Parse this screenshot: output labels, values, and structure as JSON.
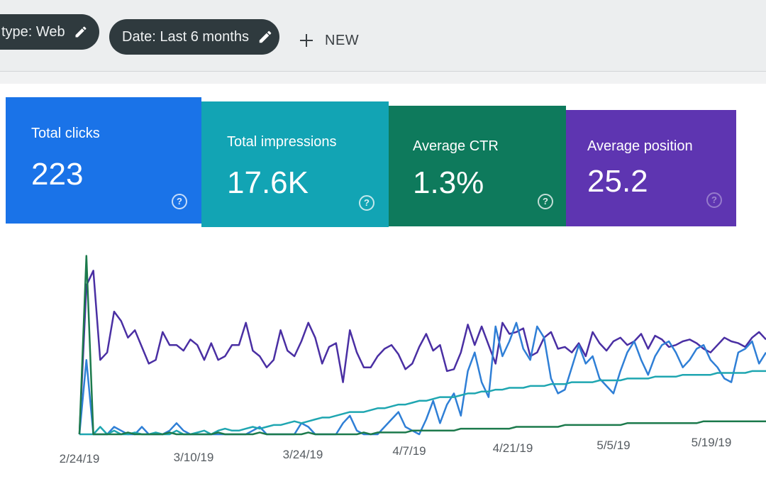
{
  "filters": {
    "type_chip": "type: Web",
    "date_chip": "Date: Last 6 months",
    "new_button": "NEW"
  },
  "metrics": [
    {
      "label": "Total clicks",
      "value": "223",
      "color": "#1a73e8"
    },
    {
      "label": "Total impressions",
      "value": "17.6K",
      "color": "#12a4b4"
    },
    {
      "label": "Average CTR",
      "value": "1.3%",
      "color": "#0e7a5c"
    },
    {
      "label": "Average position",
      "value": "25.2",
      "color": "#5e35b1"
    }
  ],
  "chart_data": {
    "type": "line",
    "x_ticks": [
      "2/24/19",
      "3/10/19",
      "3/24/19",
      "4/7/19",
      "4/21/19",
      "5/5/19",
      "5/19/19"
    ],
    "series": [
      {
        "color": "#4a2fa3",
        "values": [
          0,
          80,
          88,
          40,
          44,
          66,
          61,
          52,
          56,
          47,
          38,
          40,
          55,
          48,
          48,
          45,
          51,
          48,
          40,
          49,
          40,
          42,
          48,
          48,
          60,
          45,
          42,
          36,
          40,
          56,
          45,
          42,
          50,
          60,
          52,
          38,
          47,
          49,
          28,
          56,
          44,
          36,
          36,
          42,
          46,
          48,
          43,
          35,
          38,
          47,
          54,
          45,
          48,
          34,
          35,
          44,
          59,
          48,
          58,
          48,
          38,
          60,
          54,
          55,
          57,
          42,
          44,
          52,
          55,
          46,
          47,
          44,
          49,
          42,
          55,
          49,
          45,
          50,
          52,
          48,
          50,
          54,
          46,
          53,
          51,
          47,
          48,
          50,
          51,
          49,
          46,
          44,
          48,
          52,
          50,
          49,
          47,
          52,
          55,
          51
        ]
      },
      {
        "color": "#2f7fd6",
        "values": [
          0,
          40,
          0,
          0,
          0,
          4,
          2,
          0,
          0,
          4,
          0,
          0,
          0,
          2,
          6,
          2,
          0,
          0,
          0,
          0,
          0,
          0,
          0,
          0,
          0,
          2,
          4,
          0,
          0,
          0,
          0,
          0,
          6,
          4,
          0,
          0,
          0,
          0,
          6,
          10,
          2,
          0,
          0,
          0,
          4,
          8,
          12,
          4,
          2,
          0,
          8,
          18,
          6,
          16,
          22,
          10,
          34,
          44,
          28,
          20,
          58,
          42,
          50,
          60,
          46,
          40,
          58,
          52,
          30,
          22,
          24,
          36,
          48,
          38,
          42,
          30,
          26,
          22,
          34,
          44,
          50,
          40,
          32,
          42,
          48,
          50,
          44,
          36,
          40,
          46,
          48,
          40,
          36,
          30,
          28,
          44,
          46,
          50,
          38,
          44
        ]
      },
      {
        "color": "#1fa6b1",
        "values": [
          0,
          0,
          0,
          4,
          0,
          2,
          0,
          0,
          1,
          0,
          0,
          1,
          0,
          0,
          2,
          0,
          0,
          1,
          2,
          0,
          2,
          3,
          2,
          2,
          3,
          4,
          3,
          4,
          5,
          5,
          6,
          7,
          6,
          7,
          8,
          9,
          9,
          10,
          11,
          12,
          12,
          12,
          13,
          14,
          14,
          15,
          16,
          16,
          17,
          18,
          18,
          19,
          20,
          20,
          20,
          21,
          22,
          22,
          23,
          23,
          24,
          24,
          25,
          25,
          25,
          26,
          26,
          26,
          27,
          27,
          27,
          28,
          28,
          28,
          28,
          29,
          29,
          29,
          29,
          30,
          30,
          30,
          30,
          31,
          31,
          31,
          31,
          32,
          32,
          32,
          32,
          32,
          33,
          33,
          33,
          33,
          33,
          34,
          34,
          34
        ]
      },
      {
        "color": "#1c7a4c",
        "values": [
          0,
          96,
          0,
          0,
          0,
          0,
          0,
          1,
          0,
          0,
          0,
          0,
          0,
          1,
          0,
          0,
          0,
          0,
          0,
          0,
          1,
          0,
          0,
          0,
          0,
          0,
          1,
          0,
          0,
          0,
          0,
          0,
          0,
          1,
          0,
          0,
          0,
          0,
          0,
          0,
          0,
          1,
          0,
          1,
          1,
          1,
          1,
          1,
          2,
          2,
          2,
          2,
          2,
          2,
          2,
          3,
          3,
          3,
          3,
          3,
          3,
          3,
          3,
          4,
          4,
          4,
          4,
          4,
          4,
          4,
          5,
          5,
          5,
          5,
          5,
          5,
          5,
          5,
          5,
          6,
          6,
          6,
          6,
          6,
          6,
          6,
          6,
          6,
          6,
          6,
          7,
          7,
          7,
          7,
          7,
          7,
          7,
          7,
          7,
          7
        ]
      }
    ],
    "ylim": [
      0,
      100
    ]
  }
}
